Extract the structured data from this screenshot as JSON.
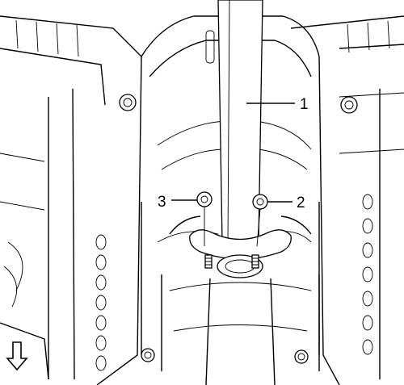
{
  "callouts": {
    "pipe": "1",
    "nut_right": "2",
    "nut_left": "3"
  },
  "icons": {
    "front_direction": "down-arrow-icon"
  }
}
